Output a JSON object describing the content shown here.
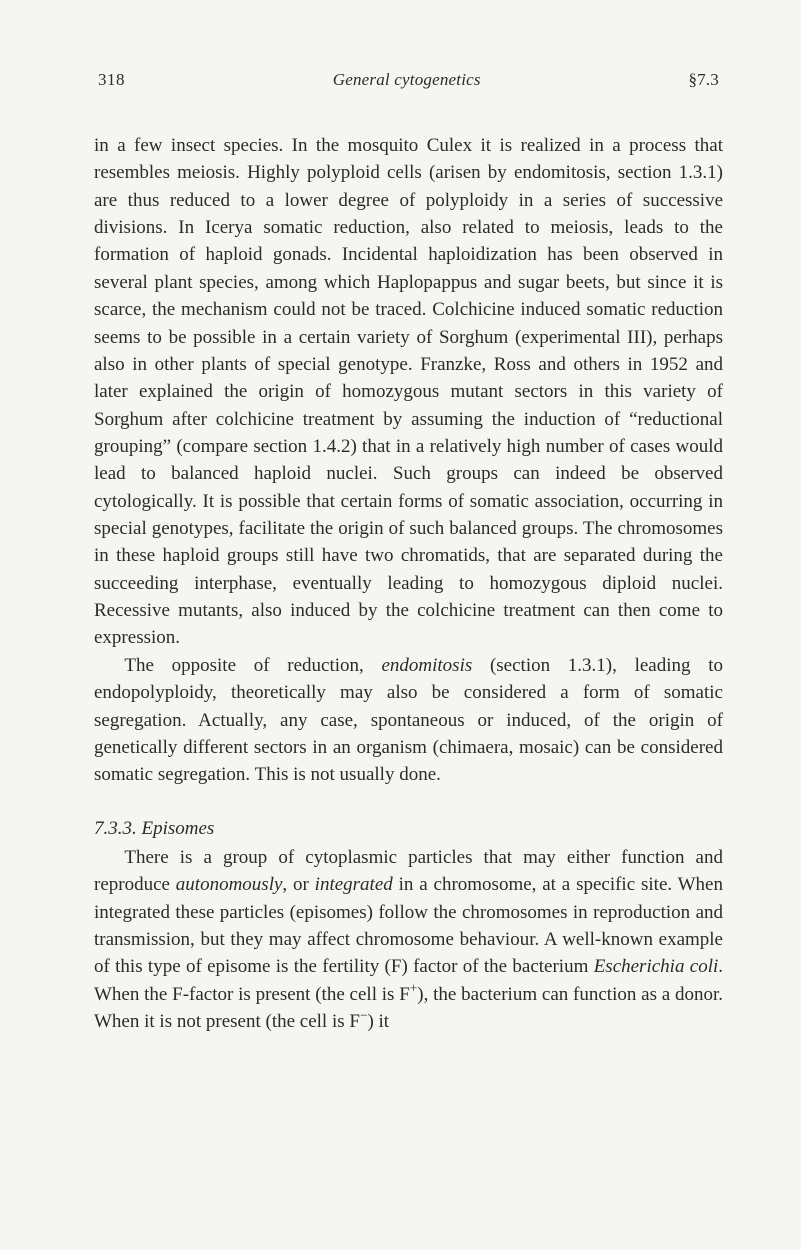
{
  "page": {
    "number": "318",
    "running_title": "General cytogenetics",
    "section_ref": "§7.3",
    "background_color": "#f5f5f1",
    "text_color": "#2b2b2b",
    "body_font_size_pt": 14,
    "body_line_height": 1.44,
    "font_family": "Times New Roman"
  },
  "paragraphs": {
    "p1": "in a few insect species. In the mosquito Culex it is realized in a process that resembles meiosis. Highly polyploid cells (arisen by endomitosis, section 1.3.1) are thus reduced to a lower degree of polyploidy in a series of successive divisions. In Icerya somatic reduction, also related to meiosis, leads to the formation of haploid gonads. Incidental haploidization has been observed in several plant species, among which Haplopappus and sugar beets, but since it is scarce, the mechanism could not be traced. Colchicine induced somatic reduction seems to be possible in a certain variety of Sorghum (experimental III), perhaps also in other plants of special genotype. Franzke, Ross and others in 1952 and later explained the origin of homozygous mutant sectors in this variety of Sorghum after colchicine treatment by assuming the induction of “reductional grouping” (compare section 1.4.2) that in a relatively high number of cases would lead to balanced haploid nuclei. Such groups can indeed be observed cytologically. It is possible that certain forms of somatic association, occurring in special genotypes, facilitate the origin of such balanced groups. The chromosomes in these haploid groups still have two chromatids, that are separated during the succeeding interphase, eventually leading to homozygous diploid nuclei. Recessive mutants, also induced by the colchicine treatment can then come to expression.",
    "p2_a": "The opposite of reduction, ",
    "p2_b_ital": "endomitosis",
    "p2_c": " (section 1.3.1), leading to endopolyploidy, theoretically may also be considered a form of somatic segregation. Actually, any case, spontaneous or induced, of the origin of genetically different sectors in an organism (chimaera, mosaic) can be considered somatic segregation. This is not usually done."
  },
  "section": {
    "number": "7.3.3.",
    "title": "Episomes",
    "p3_a": "There is a group of cytoplasmic particles that may either function and reproduce ",
    "p3_b_ital": "autonomously",
    "p3_c": ", or ",
    "p3_d_ital": "integrated",
    "p3_e": " in a chromosome, at a specific site. When integrated these particles (episomes) follow the chromosomes in reproduction and transmission, but they may affect chromosome behaviour. A well-known example of this type of episome is the fertility (F) factor of the bacterium ",
    "p3_f_ital": "Escherichia coli",
    "p3_g": ". When the F-factor is present (the cell is F",
    "p3_h_sup": "+",
    "p3_i": "), the bacterium can function as a donor. When it is not present (the cell is F",
    "p3_j_sup": "−",
    "p3_k": ") it"
  }
}
